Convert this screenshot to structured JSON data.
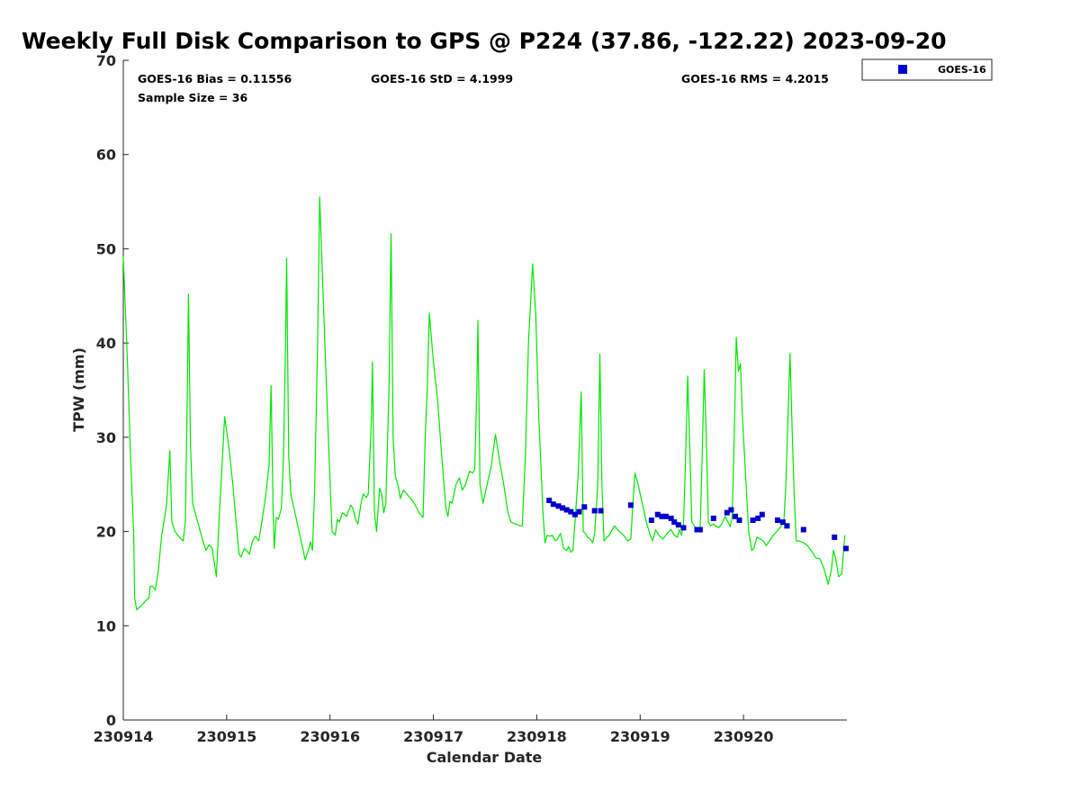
{
  "chart_data": {
    "type": "line",
    "title": "Weekly Full Disk Comparison to GPS @ P224 (37.86, -122.22) 2023-09-20",
    "xlabel": "Calendar Date",
    "ylabel": "TPW (mm)",
    "xlim": [
      0,
      7
    ],
    "ylim": [
      0,
      70
    ],
    "x_ticks": [
      {
        "x": 0,
        "label": "230914"
      },
      {
        "x": 1,
        "label": "230915"
      },
      {
        "x": 2,
        "label": "230916"
      },
      {
        "x": 3,
        "label": "230917"
      },
      {
        "x": 4,
        "label": "230918"
      },
      {
        "x": 5,
        "label": "230919"
      },
      {
        "x": 6,
        "label": "230920"
      }
    ],
    "y_ticks": [
      0,
      10,
      20,
      30,
      40,
      50,
      60,
      70
    ],
    "grid": false,
    "legend": {
      "position": "outside-top-right",
      "entries": [
        "GOES-16"
      ]
    },
    "stats": {
      "bias": "GOES-16 Bias = 0.11556",
      "std": "GOES-16 StD = 4.1999",
      "rms": "GOES-16 RMS = 4.2015",
      "sample": "Sample Size = 36"
    },
    "colors": {
      "gps_line": "#00e600",
      "goes_markers": "#0000cc"
    },
    "series": [
      {
        "color": "#00e600",
        "style": "line",
        "points": [
          [
            0.0,
            49.2
          ],
          [
            0.04,
            38.0
          ],
          [
            0.07,
            28.0
          ],
          [
            0.1,
            20.0
          ],
          [
            0.11,
            13.0
          ],
          [
            0.13,
            11.7
          ],
          [
            0.18,
            12.2
          ],
          [
            0.22,
            12.7
          ],
          [
            0.25,
            13.0
          ],
          [
            0.26,
            14.2
          ],
          [
            0.28,
            14.2
          ],
          [
            0.31,
            13.8
          ],
          [
            0.34,
            16.0
          ],
          [
            0.37,
            19.5
          ],
          [
            0.4,
            21.5
          ],
          [
            0.42,
            23.0
          ],
          [
            0.45,
            28.6
          ],
          [
            0.47,
            21.0
          ],
          [
            0.5,
            20.0
          ],
          [
            0.55,
            19.3
          ],
          [
            0.58,
            19.0
          ],
          [
            0.6,
            21.0
          ],
          [
            0.62,
            35.0
          ],
          [
            0.63,
            45.2
          ],
          [
            0.65,
            29.0
          ],
          [
            0.67,
            23.0
          ],
          [
            0.72,
            21.0
          ],
          [
            0.77,
            19.0
          ],
          [
            0.8,
            18.0
          ],
          [
            0.83,
            18.6
          ],
          [
            0.86,
            18.2
          ],
          [
            0.9,
            15.2
          ],
          [
            0.93,
            22.0
          ],
          [
            0.96,
            28.0
          ],
          [
            0.98,
            32.2
          ],
          [
            1.02,
            29.0
          ],
          [
            1.06,
            25.0
          ],
          [
            1.1,
            20.0
          ],
          [
            1.12,
            17.6
          ],
          [
            1.14,
            17.3
          ],
          [
            1.17,
            18.2
          ],
          [
            1.2,
            17.9
          ],
          [
            1.22,
            17.6
          ],
          [
            1.25,
            19.0
          ],
          [
            1.28,
            19.5
          ],
          [
            1.31,
            19.0
          ],
          [
            1.34,
            21.0
          ],
          [
            1.38,
            24.0
          ],
          [
            1.41,
            27.0
          ],
          [
            1.43,
            35.5
          ],
          [
            1.45,
            22.0
          ],
          [
            1.46,
            18.2
          ],
          [
            1.48,
            21.5
          ],
          [
            1.5,
            21.3
          ],
          [
            1.53,
            22.5
          ],
          [
            1.55,
            28.0
          ],
          [
            1.57,
            40.0
          ],
          [
            1.58,
            49.0
          ],
          [
            1.6,
            28.0
          ],
          [
            1.62,
            24.0
          ],
          [
            1.66,
            22.0
          ],
          [
            1.7,
            20.0
          ],
          [
            1.74,
            18.0
          ],
          [
            1.76,
            17.0
          ],
          [
            1.79,
            18.0
          ],
          [
            1.81,
            18.9
          ],
          [
            1.83,
            18.0
          ],
          [
            1.85,
            24.0
          ],
          [
            1.88,
            40.0
          ],
          [
            1.9,
            55.5
          ],
          [
            1.93,
            46.0
          ],
          [
            1.96,
            37.0
          ],
          [
            1.99,
            28.0
          ],
          [
            2.02,
            20.0
          ],
          [
            2.05,
            19.6
          ],
          [
            2.07,
            21.3
          ],
          [
            2.09,
            21.0
          ],
          [
            2.12,
            22.0
          ],
          [
            2.16,
            21.6
          ],
          [
            2.2,
            22.8
          ],
          [
            2.22,
            22.5
          ],
          [
            2.25,
            21.2
          ],
          [
            2.27,
            20.8
          ],
          [
            2.3,
            23.0
          ],
          [
            2.32,
            24.0
          ],
          [
            2.35,
            23.6
          ],
          [
            2.37,
            24.0
          ],
          [
            2.4,
            32.0
          ],
          [
            2.41,
            38.0
          ],
          [
            2.43,
            22.0
          ],
          [
            2.45,
            20.0
          ],
          [
            2.48,
            24.6
          ],
          [
            2.5,
            24.0
          ],
          [
            2.52,
            22.0
          ],
          [
            2.54,
            23.0
          ],
          [
            2.57,
            35.0
          ],
          [
            2.59,
            51.6
          ],
          [
            2.61,
            30.0
          ],
          [
            2.63,
            26.0
          ],
          [
            2.66,
            24.8
          ],
          [
            2.68,
            23.5
          ],
          [
            2.71,
            24.4
          ],
          [
            2.74,
            24.0
          ],
          [
            2.78,
            23.5
          ],
          [
            2.82,
            22.9
          ],
          [
            2.86,
            22.0
          ],
          [
            2.9,
            21.5
          ],
          [
            2.92,
            30.0
          ],
          [
            2.94,
            35.0
          ],
          [
            2.96,
            43.2
          ],
          [
            3.0,
            38.0
          ],
          [
            3.04,
            34.0
          ],
          [
            3.08,
            28.0
          ],
          [
            3.12,
            22.5
          ],
          [
            3.14,
            21.6
          ],
          [
            3.16,
            23.2
          ],
          [
            3.18,
            23.0
          ],
          [
            3.22,
            25.0
          ],
          [
            3.25,
            25.7
          ],
          [
            3.28,
            24.4
          ],
          [
            3.31,
            25.0
          ],
          [
            3.35,
            26.4
          ],
          [
            3.38,
            26.2
          ],
          [
            3.4,
            26.6
          ],
          [
            3.42,
            35.0
          ],
          [
            3.43,
            42.4
          ],
          [
            3.45,
            25.0
          ],
          [
            3.48,
            23.0
          ],
          [
            3.52,
            25.0
          ],
          [
            3.56,
            27.0
          ],
          [
            3.6,
            30.3
          ],
          [
            3.64,
            27.5
          ],
          [
            3.68,
            25.0
          ],
          [
            3.72,
            22.0
          ],
          [
            3.75,
            21.0
          ],
          [
            3.79,
            20.8
          ],
          [
            3.84,
            20.6
          ],
          [
            3.86,
            20.6
          ],
          [
            3.89,
            28.0
          ],
          [
            3.92,
            40.0
          ],
          [
            3.96,
            48.4
          ],
          [
            3.99,
            43.0
          ],
          [
            4.02,
            32.0
          ],
          [
            4.06,
            22.0
          ],
          [
            4.08,
            18.8
          ],
          [
            4.1,
            19.6
          ],
          [
            4.13,
            19.5
          ],
          [
            4.15,
            19.6
          ],
          [
            4.18,
            19.0
          ],
          [
            4.2,
            19.2
          ],
          [
            4.23,
            19.8
          ],
          [
            4.26,
            18.2
          ],
          [
            4.29,
            18.0
          ],
          [
            4.31,
            18.4
          ],
          [
            4.33,
            17.8
          ],
          [
            4.35,
            18.0
          ],
          [
            4.37,
            21.0
          ],
          [
            4.4,
            26.0
          ],
          [
            4.43,
            34.8
          ],
          [
            4.45,
            20.0
          ],
          [
            4.47,
            19.8
          ],
          [
            4.49,
            19.4
          ],
          [
            4.51,
            19.3
          ],
          [
            4.54,
            18.8
          ],
          [
            4.56,
            19.8
          ],
          [
            4.59,
            25.0
          ],
          [
            4.61,
            38.8
          ],
          [
            4.63,
            25.0
          ],
          [
            4.65,
            19.0
          ],
          [
            4.68,
            19.4
          ],
          [
            4.7,
            19.6
          ],
          [
            4.75,
            20.6
          ],
          [
            4.8,
            20.0
          ],
          [
            4.84,
            19.6
          ],
          [
            4.88,
            19.0
          ],
          [
            4.91,
            19.2
          ],
          [
            4.93,
            23.0
          ],
          [
            4.95,
            26.2
          ],
          [
            4.98,
            25.0
          ],
          [
            5.02,
            23.0
          ],
          [
            5.06,
            21.0
          ],
          [
            5.1,
            19.5
          ],
          [
            5.12,
            19.0
          ],
          [
            5.15,
            20.2
          ],
          [
            5.18,
            19.6
          ],
          [
            5.22,
            19.2
          ],
          [
            5.26,
            19.8
          ],
          [
            5.3,
            20.2
          ],
          [
            5.33,
            19.6
          ],
          [
            5.36,
            19.4
          ],
          [
            5.38,
            20.2
          ],
          [
            5.4,
            19.6
          ],
          [
            5.42,
            20.8
          ],
          [
            5.44,
            28.0
          ],
          [
            5.46,
            36.5
          ],
          [
            5.48,
            29.0
          ],
          [
            5.5,
            21.0
          ],
          [
            5.53,
            20.5
          ],
          [
            5.56,
            20.2
          ],
          [
            5.58,
            20.0
          ],
          [
            5.6,
            28.0
          ],
          [
            5.62,
            37.2
          ],
          [
            5.64,
            30.0
          ],
          [
            5.66,
            21.0
          ],
          [
            5.68,
            20.6
          ],
          [
            5.71,
            20.8
          ],
          [
            5.73,
            20.6
          ],
          [
            5.76,
            20.4
          ],
          [
            5.79,
            20.8
          ],
          [
            5.82,
            21.6
          ],
          [
            5.85,
            21.0
          ],
          [
            5.87,
            20.5
          ],
          [
            5.89,
            21.5
          ],
          [
            5.91,
            30.0
          ],
          [
            5.93,
            40.6
          ],
          [
            5.95,
            37.0
          ],
          [
            5.97,
            37.8
          ],
          [
            5.99,
            32.0
          ],
          [
            6.02,
            26.0
          ],
          [
            6.05,
            20.0
          ],
          [
            6.08,
            18.0
          ],
          [
            6.1,
            18.2
          ],
          [
            6.13,
            19.4
          ],
          [
            6.16,
            19.2
          ],
          [
            6.19,
            19.0
          ],
          [
            6.22,
            18.5
          ],
          [
            6.25,
            19.0
          ],
          [
            6.28,
            19.5
          ],
          [
            6.32,
            20.0
          ],
          [
            6.36,
            20.5
          ],
          [
            6.39,
            21.0
          ],
          [
            6.41,
            25.0
          ],
          [
            6.43,
            32.0
          ],
          [
            6.45,
            38.9
          ],
          [
            6.47,
            31.0
          ],
          [
            6.49,
            24.0
          ],
          [
            6.51,
            19.0
          ],
          [
            6.54,
            19.0
          ],
          [
            6.58,
            18.8
          ],
          [
            6.62,
            18.5
          ],
          [
            6.66,
            17.9
          ],
          [
            6.7,
            17.2
          ],
          [
            6.74,
            17.1
          ],
          [
            6.78,
            16.0
          ],
          [
            6.82,
            14.4
          ],
          [
            6.85,
            16.0
          ],
          [
            6.87,
            18.0
          ],
          [
            6.89,
            17.2
          ],
          [
            6.92,
            15.2
          ],
          [
            6.95,
            15.5
          ],
          [
            6.98,
            19.6
          ]
        ]
      },
      {
        "name": "GOES-16",
        "color": "#0000cc",
        "style": "marker",
        "points": [
          [
            4.12,
            23.3
          ],
          [
            4.16,
            22.9
          ],
          [
            4.21,
            22.7
          ],
          [
            4.25,
            22.5
          ],
          [
            4.29,
            22.3
          ],
          [
            4.33,
            22.1
          ],
          [
            4.37,
            21.8
          ],
          [
            4.41,
            22.1
          ],
          [
            4.46,
            22.6
          ],
          [
            4.56,
            22.2
          ],
          [
            4.62,
            22.2
          ],
          [
            4.91,
            22.8
          ],
          [
            5.11,
            21.2
          ],
          [
            5.17,
            21.8
          ],
          [
            5.21,
            21.6
          ],
          [
            5.25,
            21.6
          ],
          [
            5.3,
            21.4
          ],
          [
            5.33,
            21.0
          ],
          [
            5.37,
            20.7
          ],
          [
            5.42,
            20.4
          ],
          [
            5.55,
            20.2
          ],
          [
            5.58,
            20.2
          ],
          [
            5.71,
            21.4
          ],
          [
            5.84,
            22.0
          ],
          [
            5.88,
            22.3
          ],
          [
            5.92,
            21.6
          ],
          [
            5.96,
            21.2
          ],
          [
            6.09,
            21.2
          ],
          [
            6.14,
            21.4
          ],
          [
            6.18,
            21.8
          ],
          [
            6.33,
            21.2
          ],
          [
            6.38,
            21.0
          ],
          [
            6.42,
            20.6
          ],
          [
            6.58,
            20.2
          ],
          [
            6.88,
            19.4
          ],
          [
            6.99,
            18.2
          ]
        ]
      }
    ]
  }
}
